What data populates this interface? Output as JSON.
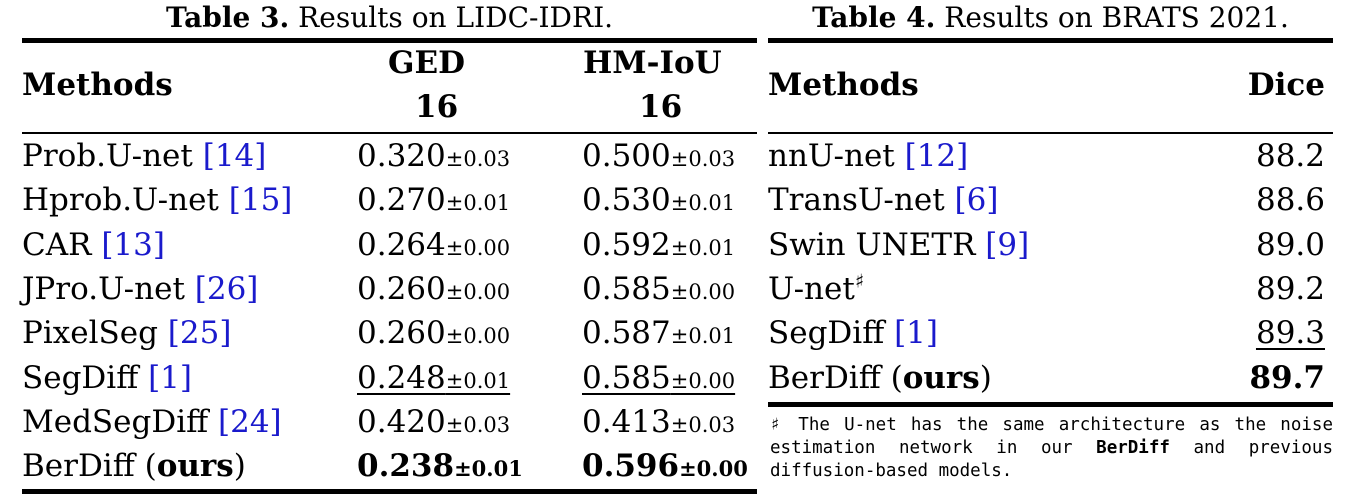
{
  "table3": {
    "caption_label": "Table 3.",
    "caption_text": " Results on LIDC-IDRI.",
    "col_methods": "Methods",
    "col_ged": "GED",
    "col_ged_sub": "16",
    "col_hmiou": "HM-IoU",
    "col_hmiou_sub": "16",
    "rows": [
      {
        "name": "Prob.U-net ",
        "cite": "[14]",
        "ged": "0.320",
        "ged_pm": "±0.03",
        "hm": "0.500",
        "hm_pm": "±0.03"
      },
      {
        "name": "Hprob.U-net ",
        "cite": "[15]",
        "ged": "0.270",
        "ged_pm": "±0.01",
        "hm": "0.530",
        "hm_pm": "±0.01"
      },
      {
        "name": "CAR ",
        "cite": "[13]",
        "ged": "0.264",
        "ged_pm": "±0.00",
        "hm": "0.592",
        "hm_pm": "±0.01"
      },
      {
        "name": "JPro.U-net ",
        "cite": "[26]",
        "ged": "0.260",
        "ged_pm": "±0.00",
        "hm": "0.585",
        "hm_pm": "±0.00"
      },
      {
        "name": "PixelSeg ",
        "cite": "[25]",
        "ged": "0.260",
        "ged_pm": "±0.00",
        "hm": "0.587",
        "hm_pm": "±0.01"
      },
      {
        "name": "SegDiff ",
        "cite": "[1]",
        "ged": "0.248",
        "ged_pm": "±0.01",
        "hm": "0.585",
        "hm_pm": "±0.00"
      },
      {
        "name": "MedSegDiff ",
        "cite": "[24]",
        "ged": "0.420",
        "ged_pm": "±0.03",
        "hm": "0.413",
        "hm_pm": "±0.03"
      }
    ],
    "last_row": {
      "name": "BerDiff (",
      "name_bold": "ours",
      "name_end": ")",
      "ged": "0.238",
      "ged_pm": "±0.01",
      "hm": "0.596",
      "hm_pm": "±0.00"
    }
  },
  "table4": {
    "caption_label": "Table 4.",
    "caption_text": " Results on BRATS 2021.",
    "col_methods": "Methods",
    "col_dice": "Dice",
    "rows": [
      {
        "name": "nnU-net ",
        "cite": "[12]",
        "dice": "88.2"
      },
      {
        "name": "TransU-net ",
        "cite": "[6]",
        "dice": "88.6"
      },
      {
        "name": "Swin UNETR ",
        "cite": "[9]",
        "dice": "89.0"
      },
      {
        "name": "U-net",
        "sup": "♯",
        "cite": "",
        "dice": "89.2"
      },
      {
        "name": "SegDiff ",
        "cite": "[1]",
        "dice": "89.3"
      }
    ],
    "last_row": {
      "name": "BerDiff (",
      "name_bold": "ours",
      "name_end": ")",
      "dice": "89.7"
    },
    "footnote_mark": "♯",
    "footnote_a": " The U-net has the same architecture as the noise estimation network in our ",
    "footnote_code": "BerDiff",
    "footnote_b": " and previous diffusion-based models."
  }
}
